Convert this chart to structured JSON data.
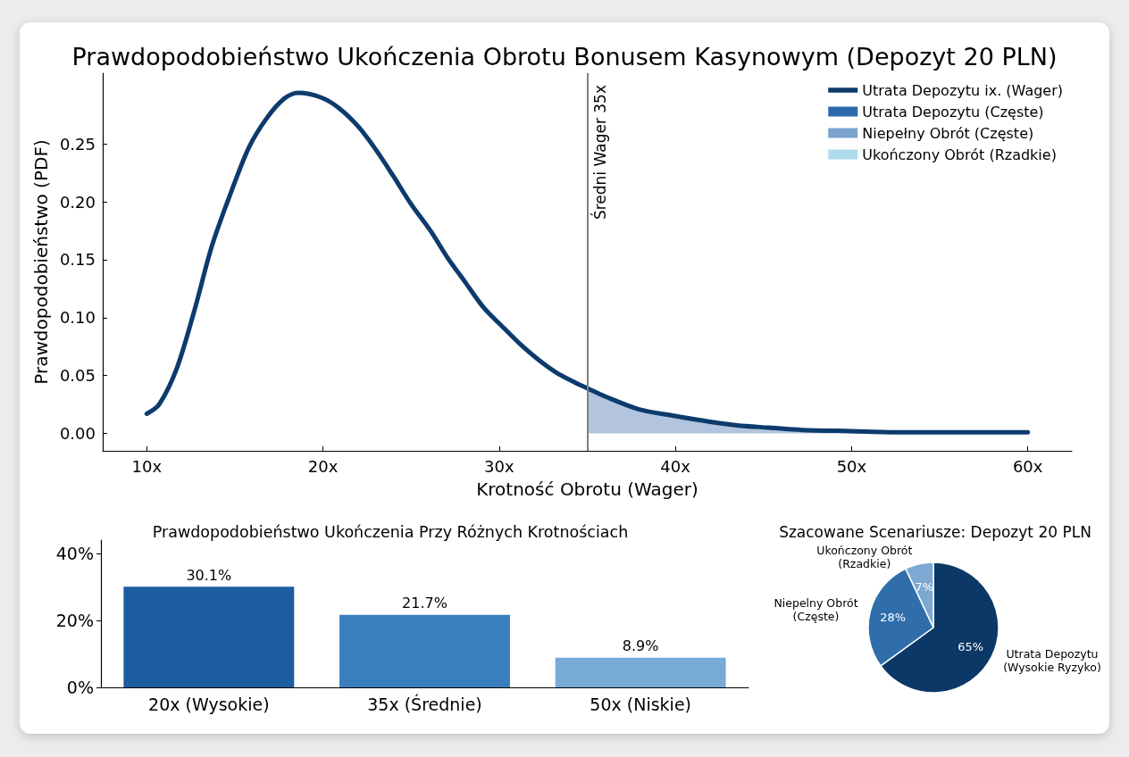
{
  "chart_data": [
    {
      "type": "line",
      "title": "Prawdopodobieństwo Ukończenia Obrotu Bonusem Kasynowym (Depozyt 20 PLN)",
      "xlabel": "Krotność Obrotu (Wager)",
      "ylabel": "Prawdopodobieństwo (PDF)",
      "xlim": [
        7.5,
        62.5
      ],
      "xticks": [
        {
          "value": 10,
          "label": "10x"
        },
        {
          "value": 20,
          "label": "20x"
        },
        {
          "value": 30,
          "label": "30x"
        },
        {
          "value": 40,
          "label": "40x"
        },
        {
          "value": 50,
          "label": "50x"
        },
        {
          "value": 60,
          "label": "60x"
        }
      ],
      "ylim": [
        -0.015,
        0.311
      ],
      "yticks": [
        {
          "value": 0,
          "label": "0.00"
        },
        0.05,
        {
          "value": 0.1,
          "label": "0.10"
        },
        0.15,
        {
          "value": 0.2,
          "label": "0.20"
        },
        0.25
      ],
      "legend": "top right",
      "marker": "none",
      "line_style": "solid",
      "ref_lines": [
        {
          "axis": "x",
          "value": 35,
          "label": "Średni Wager 35x",
          "color": "#808080"
        }
      ],
      "series": [
        {
          "name": "Utrata Depozytu ix. (Wager)",
          "type": "line",
          "color": "#0c3b6c",
          "x": [
            10,
            10.7,
            11.7,
            12.7,
            13.7,
            14.8,
            15.8,
            16.8,
            17.8,
            18.6,
            19.9,
            20.9,
            22,
            23,
            24,
            25,
            26.1,
            27.1,
            28.1,
            29.1,
            30.2,
            31.2,
            32.2,
            33.2,
            34.3,
            35,
            36,
            37.9,
            40,
            41.6,
            43.5,
            45.3,
            47.2,
            50,
            52.8,
            56,
            60
          ],
          "values": [
            0.017,
            0.025,
            0.056,
            0.106,
            0.162,
            0.209,
            0.247,
            0.272,
            0.289,
            0.294,
            0.29,
            0.281,
            0.265,
            0.245,
            0.222,
            0.198,
            0.175,
            0.151,
            0.13,
            0.109,
            0.092,
            0.077,
            0.064,
            0.053,
            0.044,
            0.039,
            0.032,
            0.021,
            0.015,
            0.011,
            0.007,
            0.005,
            0.003,
            0.002,
            0.001,
            0.001,
            0.001
          ]
        },
        {
          "type": "area",
          "color": "#b2c4de",
          "x": [
            35,
            36,
            37.9,
            40,
            41.6,
            43.5,
            45.3,
            47.2,
            50,
            52.8,
            56,
            60
          ],
          "values": [
            0.039,
            0.032,
            0.021,
            0.015,
            0.011,
            0.007,
            0.005,
            0.003,
            0.002,
            0.001,
            0.001,
            0.001
          ]
        },
        {
          "name": "Utrata Depozytu (Częste)",
          "type": "bar",
          "color": "#2c6aab"
        },
        {
          "name": "Niepełny Obrót (Częste)",
          "type": "bar",
          "color": "#7ba3cf"
        },
        {
          "name": "Ukończony Obrót (Rzadkie)",
          "type": "bar",
          "color": "#afdced"
        }
      ]
    },
    {
      "type": "bar",
      "title": "Prawdopodobieństwo Ukończenia Przy Różnych Krotnościach",
      "categories": [
        "20x (Wysokie)",
        "35x (Średnie)",
        "50x (Niskie)"
      ],
      "values": [
        30.1,
        21.7,
        8.9
      ],
      "colors": [
        "#1c5d9f",
        "#3a7fbd",
        "#78aad6"
      ],
      "value_labels": [
        "30.1%",
        "21.7%",
        "8.9%"
      ],
      "ylim": [
        0,
        44
      ],
      "yticks": [
        {
          "value": 0,
          "label": "0%"
        },
        {
          "value": 20,
          "label": "20%"
        },
        {
          "value": 40,
          "label": "40%"
        }
      ]
    },
    {
      "type": "pie",
      "title": "Szacowane Scenariusze: Depozyt 20 PLN",
      "categories": [
        "Utrata Depozytu\n(Wysokie Ryzyko)",
        "Niepelny Obrót\n(Częste)",
        "Ukończony Obrót\n(Rzadkie)"
      ],
      "values": [
        65,
        28,
        7
      ],
      "colors": [
        "#0b3866",
        "#2f6eab",
        "#7ca8d3"
      ],
      "value_labels": [
        "65%",
        "28%",
        "7%"
      ]
    }
  ]
}
